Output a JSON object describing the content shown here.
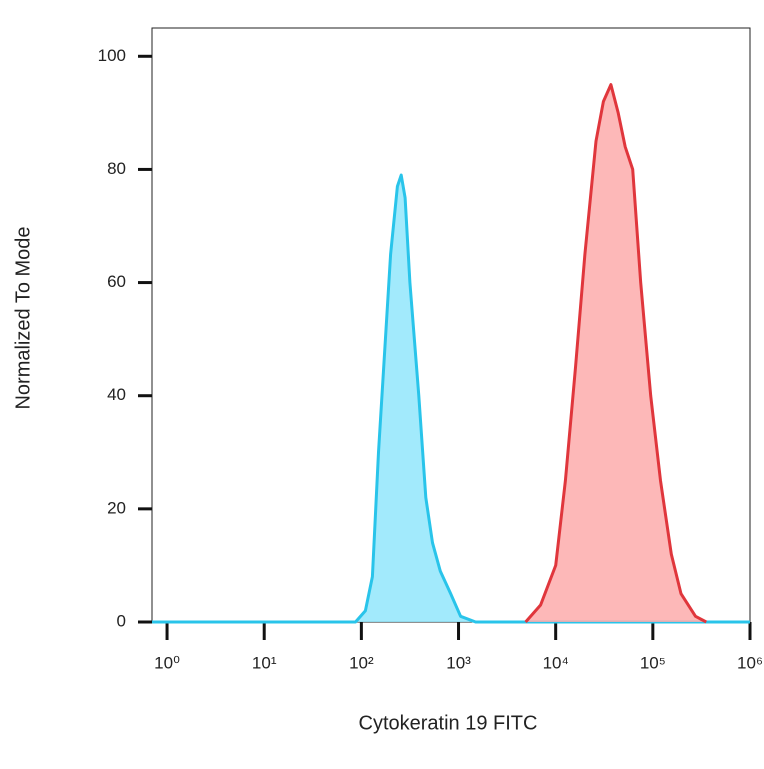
{
  "chart_data": {
    "type": "area",
    "xlabel": "Cytokeratin 19 FITC",
    "ylabel": "Normalized To Mode",
    "xscale": "log",
    "xlim": [
      0.7,
      1000000
    ],
    "ylim": [
      0,
      105
    ],
    "xticks": [
      {
        "value": 1,
        "label": "10⁰"
      },
      {
        "value": 10,
        "label": "10¹"
      },
      {
        "value": 100,
        "label": "10²"
      },
      {
        "value": 1000,
        "label": "10³"
      },
      {
        "value": 10000,
        "label": "10⁴"
      },
      {
        "value": 100000,
        "label": "10⁵"
      },
      {
        "value": 1000000,
        "label": "10⁶"
      }
    ],
    "yticks": [
      0,
      20,
      40,
      60,
      80,
      100
    ],
    "series": [
      {
        "color": "#29c4ea",
        "fill": "#92e6fb",
        "x": [
          0.7,
          87,
          110,
          130,
          150,
          200,
          235,
          257,
          282,
          316,
          390,
          460,
          540,
          650,
          830,
          1050,
          1500,
          1000000
        ],
        "values": [
          0,
          0,
          2,
          8,
          30,
          65,
          77,
          79,
          75,
          60,
          40,
          22,
          14,
          9,
          5,
          1,
          0,
          0
        ]
      },
      {
        "color": "#e0363c",
        "fill": "#fdabab",
        "x": [
          4900,
          7000,
          10000,
          12600,
          16000,
          20000,
          26000,
          31000,
          37000,
          44000,
          52000,
          62000,
          75000,
          95000,
          120000,
          155000,
          195000,
          275000,
          355000
        ],
        "values": [
          0,
          3,
          10,
          25,
          45,
          65,
          85,
          92,
          95,
          90,
          84,
          80,
          60,
          40,
          25,
          12,
          5,
          1,
          0
        ]
      }
    ]
  }
}
